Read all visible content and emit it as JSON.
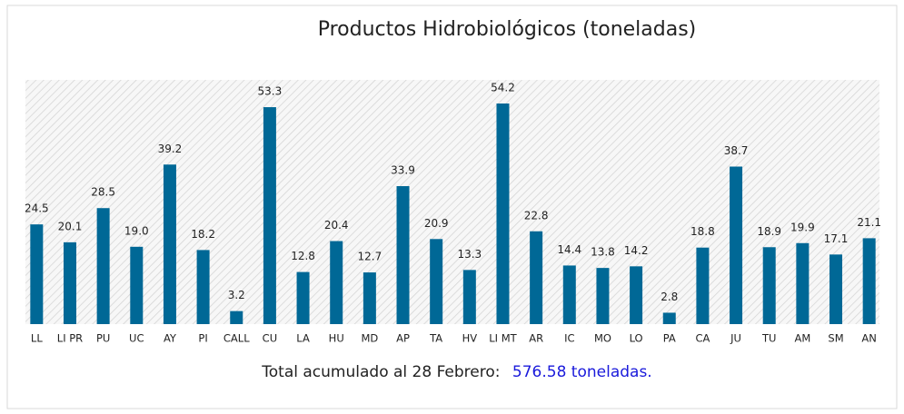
{
  "chart_data": {
    "type": "bar",
    "title": "Productos Hidrobiológicos (toneladas)",
    "categories": [
      "LL",
      "LI PR",
      "PU",
      "UC",
      "AY",
      "PI",
      "CALL",
      "CU",
      "LA",
      "HU",
      "MD",
      "AP",
      "TA",
      "HV",
      "LI MT",
      "AR",
      "IC",
      "MO",
      "LO",
      "PA",
      "CA",
      "JU",
      "TU",
      "AM",
      "SM",
      "AN"
    ],
    "values": [
      24.5,
      20.1,
      28.5,
      19.0,
      39.2,
      18.2,
      3.2,
      53.3,
      12.8,
      20.4,
      12.7,
      33.9,
      20.9,
      13.3,
      54.2,
      22.8,
      14.4,
      13.8,
      14.2,
      2.8,
      18.8,
      38.7,
      18.9,
      19.9,
      17.1,
      21.1
    ],
    "value_labels": [
      "24.5",
      "20.1",
      "28.5",
      "19.0",
      "39.2",
      "18.2",
      "3.2",
      "53.3",
      "12.8",
      "20.4",
      "12.7",
      "33.9",
      "20.9",
      "13.3",
      "54.2",
      "22.8",
      "14.4",
      "13.8",
      "14.2",
      "2.8",
      "18.8",
      "38.7",
      "18.9",
      "19.9",
      "17.1",
      "21.1"
    ],
    "color": "#006896",
    "ylim": [
      0,
      60
    ],
    "footer": {
      "text": "Total acumulado al 28 Febrero:",
      "highlight": "576.58 toneladas."
    }
  }
}
